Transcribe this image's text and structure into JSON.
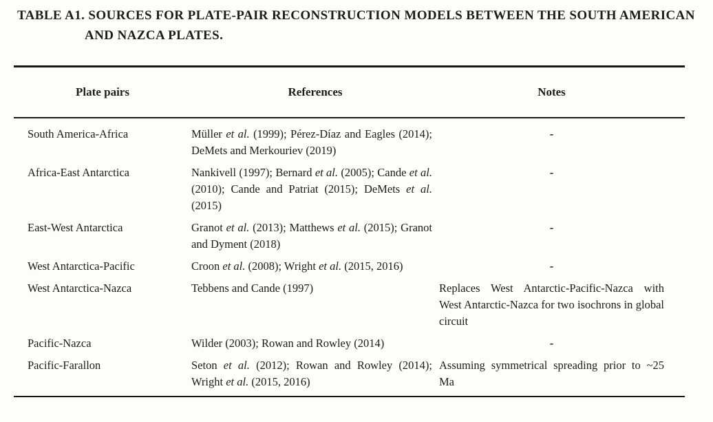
{
  "page": {
    "title": "TABLE A1. SOURCES FOR PLATE-PAIR RECONSTRUCTION MODELS BETWEEN THE SOUTH AMERICAN\nAND NAZCA PLATES."
  },
  "table": {
    "headers": {
      "plate_pairs": "Plate pairs",
      "references": "References",
      "notes": "Notes"
    },
    "rows": [
      {
        "plate_pair": "South America-Africa",
        "references": [
          {
            "text": "Müller ",
            "italic": false
          },
          {
            "text": "et al.",
            "italic": true
          },
          {
            "text": " (1999); Pérez-Díaz and Eagles (2014); DeMets and Merkouriev (2019)",
            "italic": false
          }
        ],
        "notes": "-"
      },
      {
        "plate_pair": "Africa-East Antarctica",
        "references": [
          {
            "text": "Nankivell (1997); Bernard ",
            "italic": false
          },
          {
            "text": "et al.",
            "italic": true
          },
          {
            "text": " (2005); Cande ",
            "italic": false
          },
          {
            "text": "et al.",
            "italic": true
          },
          {
            "text": " (2010); Cande and Patriat (2015); DeMets ",
            "italic": false
          },
          {
            "text": "et al.",
            "italic": true
          },
          {
            "text": " (2015)",
            "italic": false
          }
        ],
        "notes": "-"
      },
      {
        "plate_pair": "East-West Antarctica",
        "references": [
          {
            "text": "Granot ",
            "italic": false
          },
          {
            "text": "et al.",
            "italic": true
          },
          {
            "text": " (2013); Matthews ",
            "italic": false
          },
          {
            "text": "et al.",
            "italic": true
          },
          {
            "text": " (2015); Granot and Dyment (2018)",
            "italic": false
          }
        ],
        "notes": "-"
      },
      {
        "plate_pair": "West Antarctica-Pacific",
        "references": [
          {
            "text": "Croon ",
            "italic": false
          },
          {
            "text": "et al.",
            "italic": true
          },
          {
            "text": " (2008); Wright ",
            "italic": false
          },
          {
            "text": "et al.",
            "italic": true
          },
          {
            "text": " (2015, 2016)",
            "italic": false
          }
        ],
        "notes": "-"
      },
      {
        "plate_pair": "West Antarctica-Nazca",
        "references": [
          {
            "text": "Tebbens and Cande (1997)",
            "italic": false
          }
        ],
        "notes": "Replaces West Antarctic-Pacific-Nazca with West Antarctic-Nazca for two isochrons in global circuit"
      },
      {
        "plate_pair": "Pacific-Nazca",
        "references": [
          {
            "text": "Wilder (2003); Rowan and Rowley (2014)",
            "italic": false
          }
        ],
        "notes": "-"
      },
      {
        "plate_pair": "Pacific-Farallon",
        "references": [
          {
            "text": "Seton ",
            "italic": false
          },
          {
            "text": "et al.",
            "italic": true
          },
          {
            "text": " (2012); Rowan and Rowley (2014); Wright ",
            "italic": false
          },
          {
            "text": "et al.",
            "italic": true
          },
          {
            "text": " (2015, 2016)",
            "italic": false
          }
        ],
        "notes": "Assuming symmetrical spreading prior to ~25 Ma"
      }
    ]
  },
  "colors": {
    "text": "#1c1c1c",
    "rule": "#161616",
    "background": "#fdfdfc"
  }
}
